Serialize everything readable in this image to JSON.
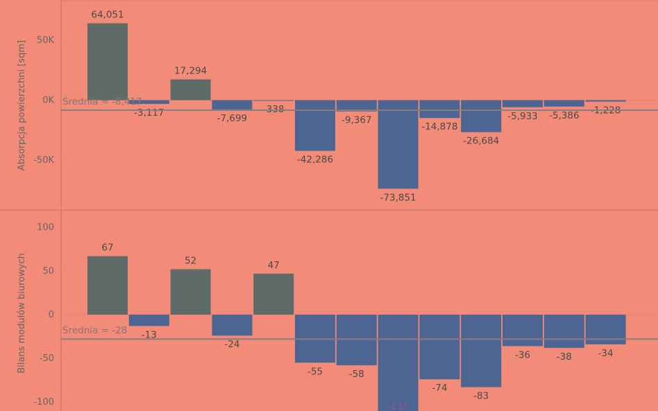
{
  "colors": {
    "background": "#f28b77",
    "positive_bar": "#5f6b68",
    "negative_bar": "#4c6592",
    "average_line": "#8a7b7d",
    "text": "#4a4a4a",
    "axis_text": "#666666"
  },
  "chart_data": [
    {
      "type": "bar",
      "ylabel": "Absorpcja powierzchni [sqm]",
      "ylim": [
        -90000,
        80000
      ],
      "yticks": [
        50000,
        0,
        -50000
      ],
      "ytick_labels": [
        "50K",
        "0K",
        "-50K"
      ],
      "values": [
        64051,
        -3117,
        17294,
        -7699,
        -338,
        -42286,
        -9367,
        -73851,
        -14878,
        -26684,
        -5933,
        -5386,
        -1228
      ],
      "value_labels": [
        "64,051",
        "-3,117",
        "17,294",
        "-7,699",
        "-338",
        "-42,286",
        "-9,367",
        "-73,851",
        "-14,878",
        "-26,684",
        "-5,933",
        "-5,386",
        "-1,228"
      ],
      "average": -8417,
      "average_label": "Średnia = -8,417",
      "grid": true
    },
    {
      "type": "bar",
      "ylabel": "Bilans modułów biurowych",
      "ylim": [
        -110,
        112
      ],
      "yticks": [
        100,
        50,
        0,
        -50,
        -100
      ],
      "ytick_labels": [
        "100",
        "50",
        "0",
        "-50",
        "-100"
      ],
      "values": [
        67,
        -13,
        52,
        -24,
        47,
        -55,
        -58,
        -115,
        -74,
        -83,
        -36,
        -38,
        -34
      ],
      "value_labels": [
        "67",
        "-13",
        "52",
        "-24",
        "47",
        "-55",
        "-58",
        "-115",
        "-74",
        "-83",
        "-36",
        "-38",
        "-34"
      ],
      "average": -28,
      "average_label": "Średnia = -28",
      "grid": true
    }
  ]
}
